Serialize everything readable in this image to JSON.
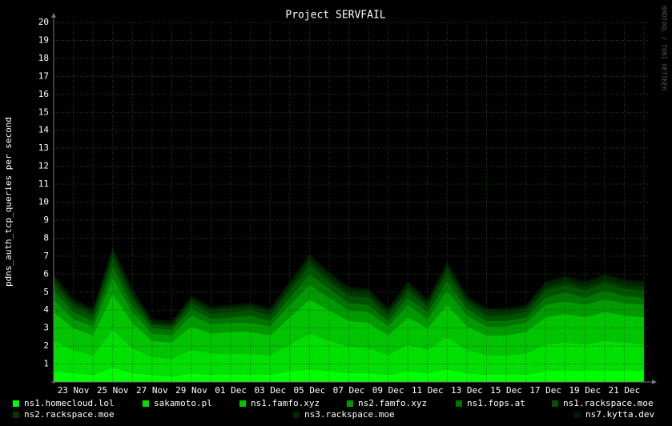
{
  "chart_data": {
    "type": "stacked-area",
    "title": "Project SERVFAIL",
    "y_label": "pdns_auth_tcp_queries per second",
    "watermark": "RRDTOOL / TOBI OETIKER",
    "categories": [
      null,
      "23 Nov",
      null,
      "25 Nov",
      null,
      "27 Nov",
      null,
      "29 Nov",
      null,
      "01 Dec",
      null,
      "03 Dec",
      null,
      "05 Dec",
      null,
      "07 Dec",
      null,
      "09 Dec",
      null,
      "11 Dec",
      null,
      "13 Dec",
      null,
      "15 Dec",
      null,
      "17 Dec",
      null,
      "19 Dec",
      null,
      "21 Dec",
      null
    ],
    "ylim": [
      0,
      20
    ],
    "yticks": [
      1,
      2,
      3,
      4,
      5,
      6,
      7,
      8,
      9,
      10,
      11,
      12,
      13,
      14,
      15,
      16,
      17,
      18,
      19,
      20
    ],
    "grid": true,
    "series": [
      {
        "name": "ns1.homecloud.lol",
        "color": "#00ff00",
        "values": [
          0.6,
          0.5,
          0.4,
          0.8,
          0.5,
          0.4,
          0.3,
          0.5,
          0.4,
          0.4,
          0.4,
          0.4,
          0.6,
          0.7,
          0.6,
          0.5,
          0.5,
          0.4,
          0.6,
          0.5,
          0.7,
          0.5,
          0.4,
          0.4,
          0.4,
          0.6,
          0.6,
          0.6,
          0.6,
          0.6,
          0.6
        ]
      },
      {
        "name": "sakamoto.pl",
        "color": "#00e000",
        "values": [
          1.7,
          1.3,
          1.1,
          2.1,
          1.4,
          1.0,
          1.0,
          1.3,
          1.2,
          1.2,
          1.2,
          1.1,
          1.5,
          2.0,
          1.7,
          1.5,
          1.4,
          1.1,
          1.5,
          1.3,
          1.8,
          1.3,
          1.1,
          1.1,
          1.2,
          1.5,
          1.6,
          1.5,
          1.7,
          1.6,
          1.5
        ]
      },
      {
        "name": "ns1.famfo.xyz",
        "color": "#00c400",
        "values": [
          1.6,
          1.2,
          1.1,
          2.0,
          1.4,
          0.9,
          0.9,
          1.3,
          1.1,
          1.2,
          1.2,
          1.1,
          1.5,
          1.9,
          1.7,
          1.4,
          1.4,
          1.1,
          1.5,
          1.2,
          1.8,
          1.3,
          1.1,
          1.1,
          1.2,
          1.5,
          1.6,
          1.5,
          1.6,
          1.5,
          1.5
        ]
      },
      {
        "name": "ns2.famfo.xyz",
        "color": "#009a00",
        "values": [
          0.7,
          0.5,
          0.5,
          0.9,
          0.6,
          0.4,
          0.4,
          0.6,
          0.5,
          0.5,
          0.5,
          0.5,
          0.7,
          0.8,
          0.7,
          0.6,
          0.6,
          0.5,
          0.7,
          0.5,
          0.8,
          0.6,
          0.5,
          0.5,
          0.5,
          0.7,
          0.7,
          0.7,
          0.7,
          0.7,
          0.7
        ]
      },
      {
        "name": "ns1.fops.at",
        "color": "#007400",
        "values": [
          0.5,
          0.4,
          0.3,
          0.6,
          0.4,
          0.3,
          0.3,
          0.4,
          0.3,
          0.3,
          0.4,
          0.3,
          0.4,
          0.6,
          0.5,
          0.4,
          0.4,
          0.3,
          0.4,
          0.4,
          0.5,
          0.4,
          0.3,
          0.3,
          0.3,
          0.4,
          0.5,
          0.4,
          0.5,
          0.4,
          0.4
        ]
      },
      {
        "name": "ns1.rackspace.moe",
        "color": "#005200",
        "values": [
          0.4,
          0.3,
          0.3,
          0.5,
          0.4,
          0.2,
          0.2,
          0.3,
          0.3,
          0.3,
          0.3,
          0.3,
          0.4,
          0.5,
          0.4,
          0.4,
          0.4,
          0.3,
          0.4,
          0.3,
          0.5,
          0.3,
          0.3,
          0.3,
          0.3,
          0.4,
          0.4,
          0.4,
          0.4,
          0.4,
          0.4
        ]
      },
      {
        "name": "ns2.rackspace.moe",
        "color": "#003800",
        "values": [
          0.2,
          0.2,
          0.2,
          0.3,
          0.2,
          0.1,
          0.1,
          0.2,
          0.2,
          0.2,
          0.2,
          0.2,
          0.2,
          0.3,
          0.2,
          0.2,
          0.2,
          0.2,
          0.2,
          0.2,
          0.3,
          0.2,
          0.2,
          0.2,
          0.2,
          0.2,
          0.2,
          0.2,
          0.2,
          0.2,
          0.2
        ]
      },
      {
        "name": "ns3.rackspace.moe",
        "color": "#002600",
        "values": [
          0.2,
          0.1,
          0.1,
          0.2,
          0.2,
          0.1,
          0.1,
          0.1,
          0.1,
          0.1,
          0.1,
          0.1,
          0.2,
          0.2,
          0.2,
          0.2,
          0.2,
          0.1,
          0.2,
          0.1,
          0.2,
          0.1,
          0.1,
          0.1,
          0.1,
          0.2,
          0.2,
          0.2,
          0.2,
          0.2,
          0.2
        ]
      },
      {
        "name": "ns7.kytta.dev",
        "color": "#001a00",
        "values": [
          0.1,
          0.1,
          0.1,
          0.1,
          0.1,
          0.1,
          0.1,
          0.1,
          0.1,
          0.1,
          0.1,
          0.1,
          0.1,
          0.1,
          0.1,
          0.1,
          0.1,
          0.1,
          0.1,
          0.1,
          0.1,
          0.1,
          0.1,
          0.1,
          0.1,
          0.1,
          0.1,
          0.1,
          0.1,
          0.1,
          0.1
        ]
      }
    ]
  }
}
